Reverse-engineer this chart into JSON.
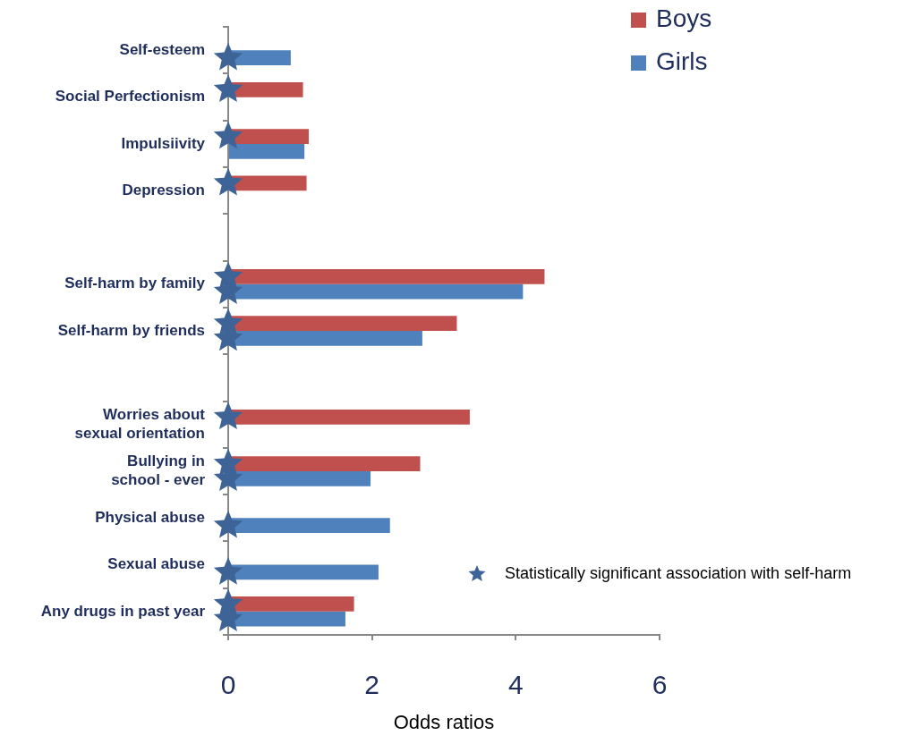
{
  "chart_data": {
    "type": "bar",
    "orientation": "horizontal",
    "xlabel": "Odds ratios",
    "categories": [
      "Self-esteem",
      "Social Perfectionism",
      "Impulsiivity",
      "Depression",
      null,
      "Self-harm by family",
      "Self-harm by friends",
      null,
      "Worries about sexual orientation",
      "Bullying in school - ever",
      "Physical abuse",
      "Sexual abuse",
      "Any drugs in past year"
    ],
    "series": [
      {
        "name": "Boys",
        "color": "#c0504d",
        "values": [
          null,
          1.04,
          1.12,
          1.09,
          null,
          4.4,
          3.18,
          null,
          3.36,
          2.67,
          null,
          null,
          1.75
        ]
      },
      {
        "name": "Girls",
        "color": "#4f81bd",
        "values": [
          0.87,
          null,
          1.06,
          null,
          null,
          4.1,
          2.7,
          null,
          null,
          1.98,
          2.25,
          2.09,
          1.63
        ]
      },
      {
        "name": "Statistically significant association with self-harm",
        "type": "scatter",
        "color": "#3e6497",
        "values": [
          null,
          0,
          0,
          0,
          null,
          0,
          0,
          null,
          0,
          0,
          null,
          null,
          0
        ]
      },
      {
        "type": "scatter",
        "color": "#3e6497",
        "values": [
          0,
          null,
          null,
          null,
          null,
          0,
          0,
          null,
          null,
          0,
          0,
          0,
          0
        ]
      }
    ],
    "xlim": [
      0,
      6
    ],
    "xticks": [
      0,
      2,
      4,
      6
    ],
    "grid": false,
    "legend": "top right",
    "marker": "star"
  }
}
